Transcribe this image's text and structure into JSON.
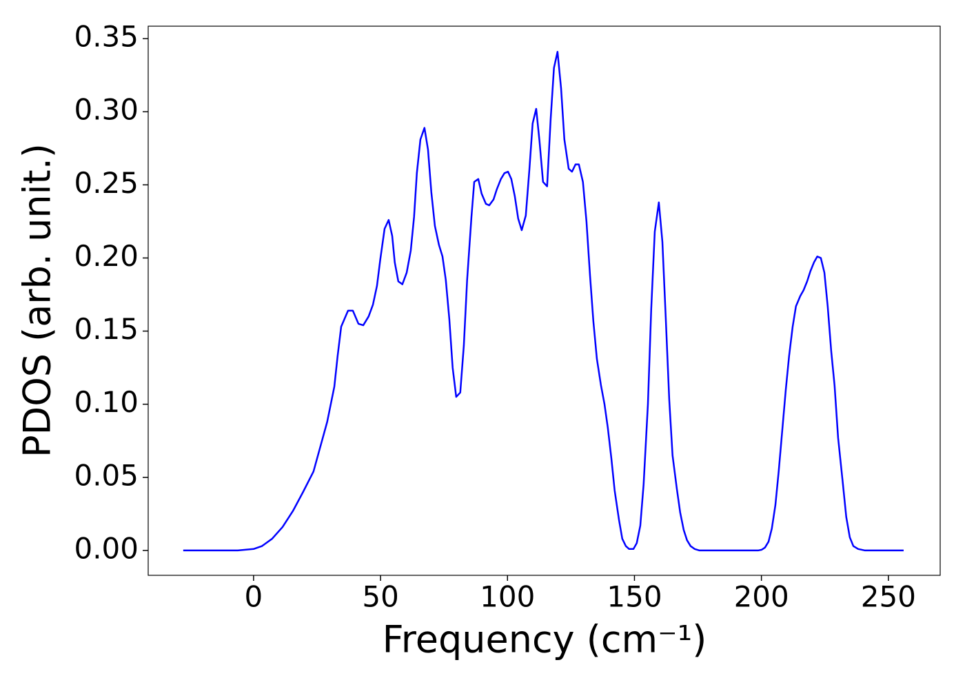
{
  "chart_data": {
    "type": "line",
    "x_label": "Frequency (cm⁻¹)",
    "y_label": "PDOS (arb. unit.)",
    "xlim": [
      -41.5,
      270.4
    ],
    "ylim": [
      -0.017,
      0.3585
    ],
    "xticks": [
      0,
      50,
      100,
      150,
      200,
      250
    ],
    "yticks": [
      {
        "value": 0,
        "label": "0.00"
      },
      {
        "value": 0.05,
        "label": "0.05"
      },
      {
        "value": 0.1,
        "label": "0.10"
      },
      {
        "value": 0.15,
        "label": "0.15"
      },
      {
        "value": 0.2,
        "label": "0.20"
      },
      {
        "value": 0.25,
        "label": "0.25"
      },
      {
        "value": 0.3,
        "label": "0.30"
      },
      {
        "value": 0.35,
        "label": "0.35"
      }
    ],
    "series": [
      {
        "color": "#0000ff",
        "x": [
          -27.7,
          -6.2,
          0,
          3.3,
          7.3,
          11.4,
          15.5,
          19.5,
          23.6,
          26.3,
          29.0,
          31.8,
          33.1,
          34.5,
          37.2,
          39.1,
          41.3,
          43.2,
          45.3,
          47.0,
          48.6,
          49.9,
          51.6,
          53.2,
          54.6,
          55.6,
          57.0,
          58.6,
          60.3,
          61.9,
          63.2,
          64.3,
          65.7,
          67.3,
          68.7,
          70.0,
          71.4,
          73.0,
          74.4,
          75.7,
          77.1,
          78.4,
          79.8,
          81.4,
          82.8,
          84.1,
          85.8,
          86.9,
          88.5,
          89.8,
          91.5,
          92.8,
          94.5,
          95.8,
          97.4,
          98.8,
          100.2,
          101.5,
          102.9,
          104.2,
          105.6,
          107.2,
          108.6,
          109.9,
          111.3,
          112.6,
          114.0,
          115.6,
          117.0,
          118.3,
          119.7,
          121.1,
          122.4,
          124.1,
          125.4,
          126.8,
          128.1,
          129.7,
          131.1,
          132.5,
          133.8,
          135.2,
          136.8,
          138.2,
          139.5,
          140.9,
          142.2,
          143.9,
          145.2,
          146.6,
          147.9,
          149.6,
          150.9,
          152.3,
          153.6,
          155.3,
          156.6,
          158.0,
          159.6,
          161.0,
          162.3,
          163.7,
          165.0,
          166.7,
          168.0,
          169.4,
          170.7,
          172.1,
          173.7,
          175.6,
          198.7,
          200.1,
          201.4,
          202.8,
          204.1,
          205.5,
          206.8,
          208.2,
          209.6,
          210.9,
          212.3,
          213.6,
          215.3,
          216.6,
          218.0,
          219.3,
          220.7,
          222.0,
          223.4,
          224.8,
          226.1,
          227.5,
          228.8,
          230.2,
          232.0,
          233.4,
          234.8,
          236.2,
          238.1,
          240.8,
          256.0
        ],
        "values": [
          0,
          0,
          0.001,
          0.003,
          0.008,
          0.016,
          0.027,
          0.04,
          0.054,
          0.071,
          0.088,
          0.112,
          0.133,
          0.153,
          0.164,
          0.164,
          0.155,
          0.154,
          0.16,
          0.168,
          0.181,
          0.199,
          0.22,
          0.226,
          0.215,
          0.197,
          0.184,
          0.182,
          0.19,
          0.205,
          0.228,
          0.258,
          0.281,
          0.289,
          0.274,
          0.245,
          0.222,
          0.209,
          0.201,
          0.185,
          0.158,
          0.125,
          0.105,
          0.108,
          0.14,
          0.185,
          0.228,
          0.252,
          0.254,
          0.244,
          0.237,
          0.236,
          0.24,
          0.247,
          0.254,
          0.258,
          0.259,
          0.254,
          0.242,
          0.227,
          0.219,
          0.229,
          0.26,
          0.292,
          0.302,
          0.28,
          0.252,
          0.249,
          0.295,
          0.33,
          0.341,
          0.316,
          0.281,
          0.261,
          0.259,
          0.264,
          0.264,
          0.252,
          0.225,
          0.188,
          0.157,
          0.131,
          0.113,
          0.1,
          0.084,
          0.063,
          0.041,
          0.021,
          0.008,
          0.003,
          0.001,
          0.001,
          0.005,
          0.017,
          0.045,
          0.1,
          0.165,
          0.218,
          0.238,
          0.211,
          0.16,
          0.103,
          0.065,
          0.042,
          0.026,
          0.014,
          0.007,
          0.003,
          0.001,
          0,
          0,
          0.0005,
          0.002,
          0.006,
          0.015,
          0.031,
          0.054,
          0.082,
          0.11,
          0.133,
          0.153,
          0.167,
          0.174,
          0.178,
          0.184,
          0.191,
          0.197,
          0.201,
          0.2,
          0.19,
          0.167,
          0.136,
          0.113,
          0.077,
          0.047,
          0.023,
          0.009,
          0.003,
          0.001,
          0,
          0
        ]
      }
    ]
  }
}
